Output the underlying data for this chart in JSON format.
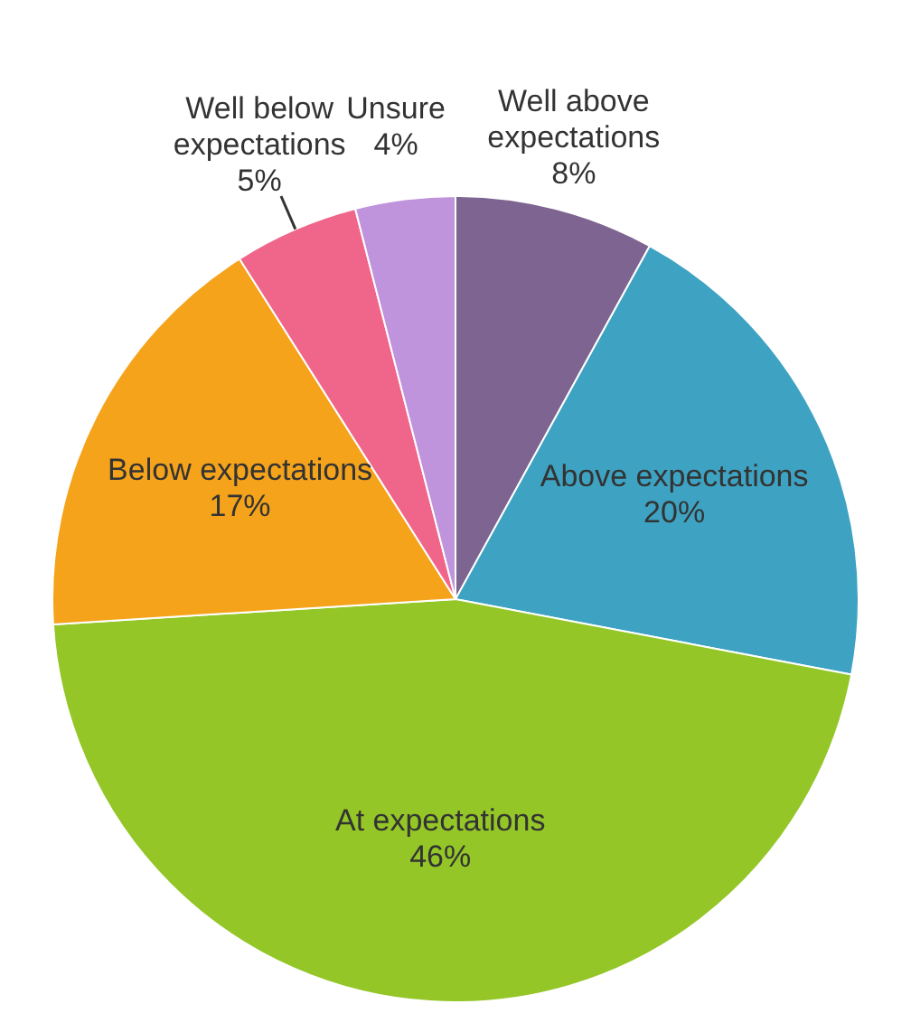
{
  "chart_data": {
    "type": "pie",
    "categories": [
      "Well above expectations",
      "Above expectations",
      "At expectations",
      "Below expectations",
      "Well below expectations",
      "Unsure"
    ],
    "values": [
      8,
      20,
      46,
      17,
      5,
      4
    ],
    "colors": [
      "#7e6490",
      "#3ea3c2",
      "#93c626",
      "#f5a31b",
      "#f0668a",
      "#c093dd"
    ],
    "value_labels": [
      "8%",
      "20%",
      "46%",
      "17%",
      "5%",
      "4%"
    ],
    "legend": false
  }
}
